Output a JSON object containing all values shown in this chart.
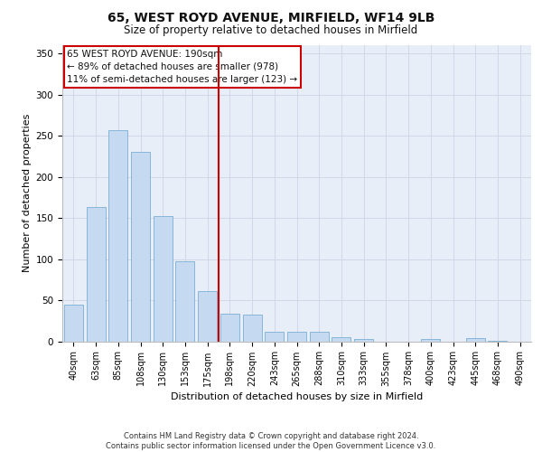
{
  "title_line1": "65, WEST ROYD AVENUE, MIRFIELD, WF14 9LB",
  "title_line2": "Size of property relative to detached houses in Mirfield",
  "xlabel": "Distribution of detached houses by size in Mirfield",
  "ylabel": "Number of detached properties",
  "categories": [
    "40sqm",
    "63sqm",
    "85sqm",
    "108sqm",
    "130sqm",
    "153sqm",
    "175sqm",
    "198sqm",
    "220sqm",
    "243sqm",
    "265sqm",
    "288sqm",
    "310sqm",
    "333sqm",
    "355sqm",
    "378sqm",
    "400sqm",
    "423sqm",
    "445sqm",
    "468sqm",
    "490sqm"
  ],
  "values": [
    44,
    163,
    257,
    230,
    152,
    97,
    61,
    33,
    32,
    11,
    11,
    11,
    5,
    3,
    0,
    0,
    3,
    0,
    4,
    1,
    0
  ],
  "bar_color": "#c5d9f0",
  "bar_edge_color": "#7bafd4",
  "vline_x_index": 7,
  "annotation_text_line1": "65 WEST ROYD AVENUE: 190sqm",
  "annotation_text_line2": "← 89% of detached houses are smaller (978)",
  "annotation_text_line3": "11% of semi-detached houses are larger (123) →",
  "annotation_box_color": "#ffffff",
  "annotation_box_edge_color": "#cc0000",
  "vline_color": "#cc0000",
  "footer_line1": "Contains HM Land Registry data © Crown copyright and database right 2024.",
  "footer_line2": "Contains public sector information licensed under the Open Government Licence v3.0.",
  "ylim": [
    0,
    360
  ],
  "yticks": [
    0,
    50,
    100,
    150,
    200,
    250,
    300,
    350
  ],
  "grid_color": "#d0d8e8",
  "background_color": "#e8eef8",
  "title_fontsize": 10,
  "subtitle_fontsize": 8.5,
  "tick_fontsize": 7,
  "ylabel_fontsize": 8,
  "xlabel_fontsize": 8,
  "annotation_fontsize": 7.5,
  "footer_fontsize": 6
}
